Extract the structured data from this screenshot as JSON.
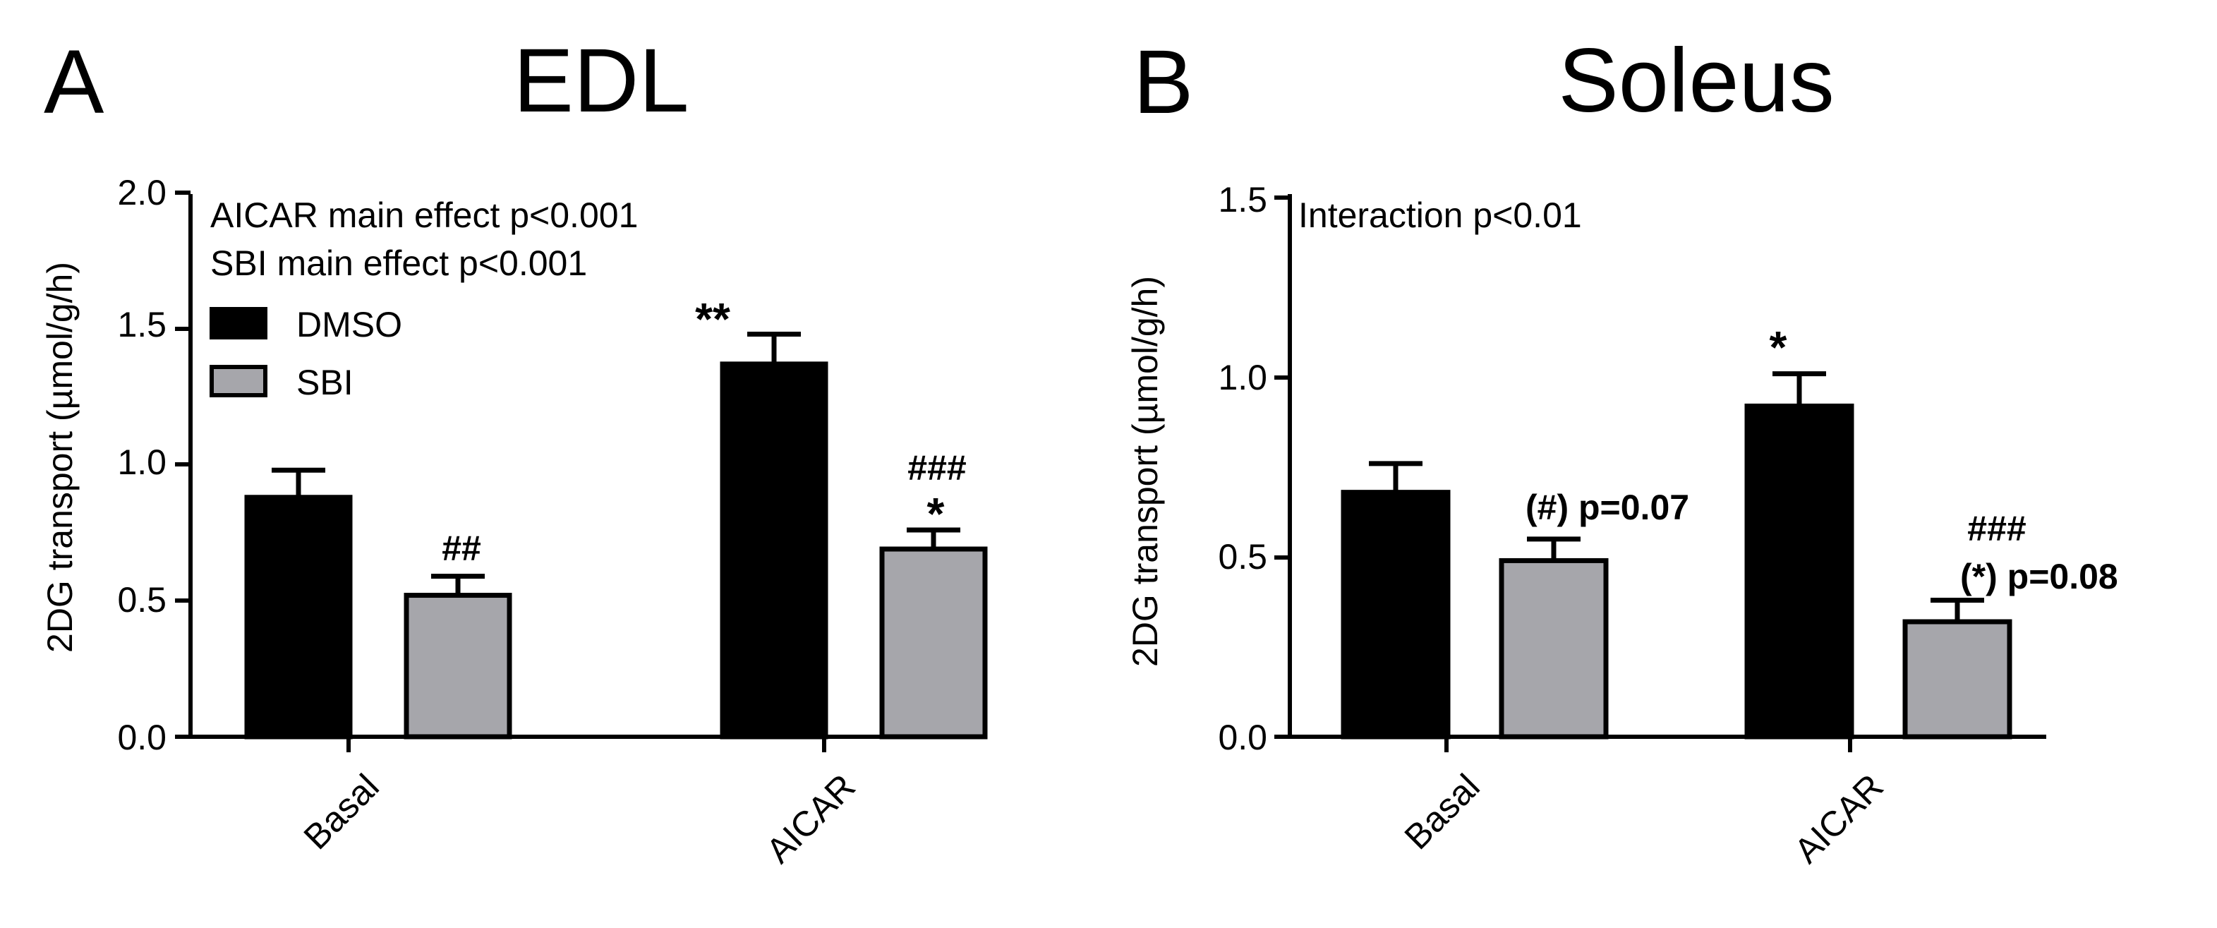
{
  "colors": {
    "dmso": "#000000",
    "sbi": "#a6a6ab",
    "axis": "#000000"
  },
  "chart_data": [
    {
      "type": "bar",
      "panel_label": "A",
      "title": "EDL",
      "ylabel": "2DG transport (µmol/g/h)",
      "xlabel": "",
      "ylim": [
        0,
        2.0
      ],
      "yticks": [
        "0.0",
        "0.5",
        "1.0",
        "1.5",
        "2.0"
      ],
      "categories": [
        "Basal",
        "AICAR"
      ],
      "series": [
        {
          "name": "DMSO",
          "values": [
            0.88,
            1.37
          ],
          "errors": [
            0.1,
            0.11
          ]
        },
        {
          "name": "SBI",
          "values": [
            0.52,
            0.69
          ],
          "errors": [
            0.07,
            0.07
          ]
        }
      ],
      "legend": {
        "position": "top-left",
        "entries": [
          "DMSO",
          "SBI"
        ]
      },
      "notes": [
        "AICAR main effect p<0.001",
        "SBI main effect p<0.001"
      ],
      "annotations": [
        {
          "category": "AICAR",
          "series": "DMSO",
          "lines": [
            "**"
          ]
        },
        {
          "category": "Basal",
          "series": "SBI",
          "lines": [
            "##"
          ]
        },
        {
          "category": "AICAR",
          "series": "SBI",
          "lines": [
            "###",
            "*"
          ]
        }
      ]
    },
    {
      "type": "bar",
      "panel_label": "B",
      "title": "Soleus",
      "ylabel": "2DG transport (µmol/g/h)",
      "xlabel": "",
      "ylim": [
        0,
        1.5
      ],
      "yticks": [
        "0.0",
        "0.5",
        "1.0",
        "1.5"
      ],
      "categories": [
        "Basal",
        "AICAR"
      ],
      "series": [
        {
          "name": "DMSO",
          "values": [
            0.68,
            0.92
          ],
          "errors": [
            0.08,
            0.09
          ]
        },
        {
          "name": "SBI",
          "values": [
            0.49,
            0.32
          ],
          "errors": [
            0.06,
            0.06
          ]
        }
      ],
      "notes": [
        "Interaction p<0.01"
      ],
      "annotations": [
        {
          "category": "AICAR",
          "series": "DMSO",
          "lines": [
            "*"
          ]
        },
        {
          "category": "Basal",
          "series": "SBI",
          "lines": [
            "(#) p=0.07"
          ]
        },
        {
          "category": "AICAR",
          "series": "SBI",
          "lines": [
            "###",
            "(*) p=0.08"
          ]
        }
      ]
    }
  ]
}
